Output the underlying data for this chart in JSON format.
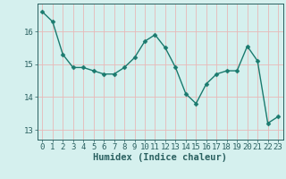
{
  "x": [
    0,
    1,
    2,
    3,
    4,
    5,
    6,
    7,
    8,
    9,
    10,
    11,
    12,
    13,
    14,
    15,
    16,
    17,
    18,
    19,
    20,
    21,
    22,
    23
  ],
  "y": [
    16.6,
    16.3,
    15.3,
    14.9,
    14.9,
    14.8,
    14.7,
    14.7,
    14.9,
    15.2,
    15.7,
    15.9,
    15.5,
    14.9,
    14.1,
    13.8,
    14.4,
    14.7,
    14.8,
    14.8,
    15.55,
    15.1,
    13.2,
    13.4
  ],
  "line_color": "#1a7a6e",
  "marker": "D",
  "marker_size": 2.5,
  "bg_color": "#d5f0ee",
  "grid_color": "#e8b8b8",
  "xlabel": "Humidex (Indice chaleur)",
  "ylim": [
    12.7,
    16.85
  ],
  "xlim": [
    -0.5,
    23.5
  ],
  "yticks": [
    13,
    14,
    15,
    16
  ],
  "xticks": [
    0,
    1,
    2,
    3,
    4,
    5,
    6,
    7,
    8,
    9,
    10,
    11,
    12,
    13,
    14,
    15,
    16,
    17,
    18,
    19,
    20,
    21,
    22,
    23
  ],
  "axis_color": "#2a6060",
  "tick_fontsize": 6.5,
  "xlabel_fontsize": 7.5
}
